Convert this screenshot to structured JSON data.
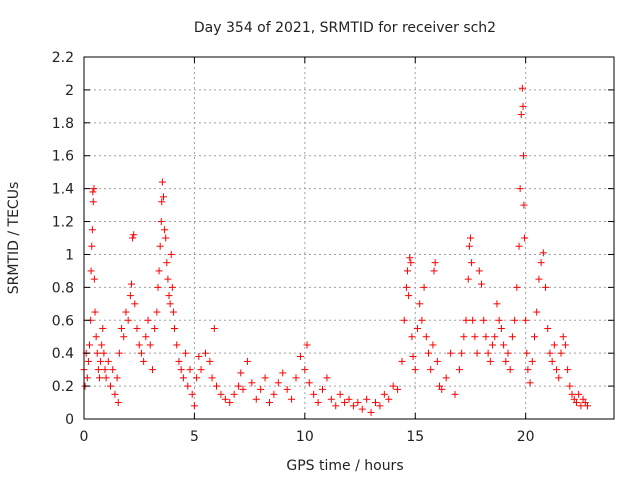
{
  "chart_data": {
    "type": "scatter",
    "title": "Day 354 of 2021, SRMTID for receiver sch2",
    "xlabel": "GPS time / hours",
    "ylabel": "SRMTID / TECUs",
    "xlim": [
      0,
      24
    ],
    "ylim": [
      0,
      2.2
    ],
    "xticks": [
      0,
      5,
      10,
      15,
      20
    ],
    "xtick_labels": [
      "0",
      "5",
      "10",
      "15",
      "20"
    ],
    "yticks": [
      0,
      0.2,
      0.4,
      0.6,
      0.8,
      1.0,
      1.2,
      1.4,
      1.6,
      1.8,
      2.0,
      2.2
    ],
    "ytick_labels": [
      "0",
      "0.2",
      "0.4",
      "0.6",
      "0.8",
      "1",
      "1.2",
      "1.4",
      "1.6",
      "1.8",
      "2",
      "2.2"
    ],
    "grid": true,
    "marker": "plus",
    "marker_color": "#ff0000",
    "series": [
      {
        "name": "SRMTID",
        "points": [
          [
            0.0,
            0.3
          ],
          [
            0.05,
            0.2
          ],
          [
            0.1,
            0.4
          ],
          [
            0.15,
            0.25
          ],
          [
            0.2,
            0.35
          ],
          [
            0.25,
            0.45
          ],
          [
            0.3,
            0.6
          ],
          [
            0.32,
            0.9
          ],
          [
            0.35,
            1.05
          ],
          [
            0.38,
            1.15
          ],
          [
            0.4,
            1.38
          ],
          [
            0.42,
            1.32
          ],
          [
            0.45,
            1.4
          ],
          [
            0.47,
            0.85
          ],
          [
            0.5,
            0.65
          ],
          [
            0.55,
            0.5
          ],
          [
            0.6,
            0.4
          ],
          [
            0.65,
            0.3
          ],
          [
            0.7,
            0.25
          ],
          [
            0.75,
            0.35
          ],
          [
            0.8,
            0.45
          ],
          [
            0.85,
            0.55
          ],
          [
            0.9,
            0.4
          ],
          [
            0.95,
            0.3
          ],
          [
            1.0,
            0.25
          ],
          [
            1.1,
            0.35
          ],
          [
            1.2,
            0.2
          ],
          [
            1.3,
            0.3
          ],
          [
            1.4,
            0.15
          ],
          [
            1.5,
            0.25
          ],
          [
            1.55,
            0.1
          ],
          [
            1.6,
            0.4
          ],
          [
            1.7,
            0.55
          ],
          [
            1.8,
            0.5
          ],
          [
            1.9,
            0.65
          ],
          [
            2.0,
            0.6
          ],
          [
            2.1,
            0.75
          ],
          [
            2.15,
            0.82
          ],
          [
            2.2,
            1.1
          ],
          [
            2.25,
            1.12
          ],
          [
            2.3,
            0.7
          ],
          [
            2.4,
            0.55
          ],
          [
            2.5,
            0.45
          ],
          [
            2.6,
            0.4
          ],
          [
            2.7,
            0.35
          ],
          [
            2.8,
            0.5
          ],
          [
            2.9,
            0.6
          ],
          [
            3.0,
            0.45
          ],
          [
            3.1,
            0.3
          ],
          [
            3.2,
            0.55
          ],
          [
            3.3,
            0.65
          ],
          [
            3.35,
            0.8
          ],
          [
            3.4,
            0.9
          ],
          [
            3.45,
            1.05
          ],
          [
            3.5,
            1.2
          ],
          [
            3.52,
            1.32
          ],
          [
            3.55,
            1.44
          ],
          [
            3.6,
            1.35
          ],
          [
            3.65,
            1.15
          ],
          [
            3.7,
            1.1
          ],
          [
            3.75,
            0.95
          ],
          [
            3.8,
            0.85
          ],
          [
            3.85,
            0.75
          ],
          [
            3.9,
            0.7
          ],
          [
            3.95,
            1.0
          ],
          [
            4.0,
            0.8
          ],
          [
            4.05,
            0.65
          ],
          [
            4.1,
            0.55
          ],
          [
            4.2,
            0.45
          ],
          [
            4.3,
            0.35
          ],
          [
            4.4,
            0.3
          ],
          [
            4.5,
            0.25
          ],
          [
            4.6,
            0.4
          ],
          [
            4.7,
            0.2
          ],
          [
            4.8,
            0.3
          ],
          [
            4.9,
            0.15
          ],
          [
            5.0,
            0.08
          ],
          [
            5.1,
            0.25
          ],
          [
            5.2,
            0.38
          ],
          [
            5.3,
            0.3
          ],
          [
            5.5,
            0.4
          ],
          [
            5.7,
            0.35
          ],
          [
            5.8,
            0.25
          ],
          [
            5.9,
            0.55
          ],
          [
            6.0,
            0.2
          ],
          [
            6.2,
            0.15
          ],
          [
            6.4,
            0.12
          ],
          [
            6.6,
            0.1
          ],
          [
            6.8,
            0.15
          ],
          [
            7.0,
            0.2
          ],
          [
            7.1,
            0.28
          ],
          [
            7.2,
            0.18
          ],
          [
            7.4,
            0.35
          ],
          [
            7.6,
            0.22
          ],
          [
            7.8,
            0.12
          ],
          [
            8.0,
            0.18
          ],
          [
            8.2,
            0.25
          ],
          [
            8.4,
            0.1
          ],
          [
            8.6,
            0.15
          ],
          [
            8.8,
            0.22
          ],
          [
            9.0,
            0.28
          ],
          [
            9.2,
            0.18
          ],
          [
            9.4,
            0.12
          ],
          [
            9.6,
            0.25
          ],
          [
            9.8,
            0.38
          ],
          [
            10.0,
            0.3
          ],
          [
            10.1,
            0.45
          ],
          [
            10.2,
            0.22
          ],
          [
            10.4,
            0.15
          ],
          [
            10.6,
            0.1
          ],
          [
            10.8,
            0.18
          ],
          [
            11.0,
            0.25
          ],
          [
            11.2,
            0.12
          ],
          [
            11.4,
            0.08
          ],
          [
            11.6,
            0.15
          ],
          [
            11.8,
            0.1
          ],
          [
            12.0,
            0.12
          ],
          [
            12.2,
            0.08
          ],
          [
            12.4,
            0.1
          ],
          [
            12.6,
            0.06
          ],
          [
            12.8,
            0.12
          ],
          [
            13.0,
            0.04
          ],
          [
            13.2,
            0.1
          ],
          [
            13.4,
            0.08
          ],
          [
            13.6,
            0.15
          ],
          [
            13.8,
            0.12
          ],
          [
            14.0,
            0.2
          ],
          [
            14.2,
            0.18
          ],
          [
            14.4,
            0.35
          ],
          [
            14.5,
            0.6
          ],
          [
            14.6,
            0.8
          ],
          [
            14.65,
            0.9
          ],
          [
            14.7,
            0.75
          ],
          [
            14.75,
            0.98
          ],
          [
            14.8,
            0.95
          ],
          [
            14.85,
            0.5
          ],
          [
            14.9,
            0.38
          ],
          [
            15.0,
            0.3
          ],
          [
            15.1,
            0.55
          ],
          [
            15.2,
            0.7
          ],
          [
            15.3,
            0.6
          ],
          [
            15.4,
            0.8
          ],
          [
            15.5,
            0.5
          ],
          [
            15.6,
            0.4
          ],
          [
            15.7,
            0.3
          ],
          [
            15.8,
            0.45
          ],
          [
            15.85,
            0.9
          ],
          [
            15.9,
            0.95
          ],
          [
            16.0,
            0.35
          ],
          [
            16.1,
            0.2
          ],
          [
            16.2,
            0.18
          ],
          [
            16.4,
            0.25
          ],
          [
            16.6,
            0.4
          ],
          [
            16.8,
            0.15
          ],
          [
            17.0,
            0.3
          ],
          [
            17.1,
            0.4
          ],
          [
            17.2,
            0.5
          ],
          [
            17.3,
            0.6
          ],
          [
            17.4,
            0.85
          ],
          [
            17.45,
            1.05
          ],
          [
            17.5,
            1.1
          ],
          [
            17.55,
            0.95
          ],
          [
            17.6,
            0.6
          ],
          [
            17.7,
            0.5
          ],
          [
            17.8,
            0.4
          ],
          [
            17.9,
            0.9
          ],
          [
            18.0,
            0.82
          ],
          [
            18.1,
            0.6
          ],
          [
            18.2,
            0.5
          ],
          [
            18.3,
            0.4
          ],
          [
            18.4,
            0.35
          ],
          [
            18.5,
            0.45
          ],
          [
            18.6,
            0.5
          ],
          [
            18.7,
            0.7
          ],
          [
            18.8,
            0.6
          ],
          [
            18.9,
            0.55
          ],
          [
            19.0,
            0.45
          ],
          [
            19.1,
            0.35
          ],
          [
            19.2,
            0.4
          ],
          [
            19.3,
            0.3
          ],
          [
            19.4,
            0.5
          ],
          [
            19.5,
            0.6
          ],
          [
            19.6,
            0.8
          ],
          [
            19.7,
            1.05
          ],
          [
            19.75,
            1.4
          ],
          [
            19.8,
            1.85
          ],
          [
            19.85,
            2.01
          ],
          [
            19.88,
            1.9
          ],
          [
            19.9,
            1.6
          ],
          [
            19.92,
            1.3
          ],
          [
            19.95,
            1.1
          ],
          [
            20.0,
            0.6
          ],
          [
            20.05,
            0.4
          ],
          [
            20.1,
            0.3
          ],
          [
            20.2,
            0.22
          ],
          [
            20.3,
            0.35
          ],
          [
            20.4,
            0.5
          ],
          [
            20.5,
            0.65
          ],
          [
            20.6,
            0.85
          ],
          [
            20.7,
            0.95
          ],
          [
            20.8,
            1.01
          ],
          [
            20.9,
            0.8
          ],
          [
            21.0,
            0.55
          ],
          [
            21.1,
            0.4
          ],
          [
            21.2,
            0.35
          ],
          [
            21.3,
            0.45
          ],
          [
            21.4,
            0.3
          ],
          [
            21.5,
            0.25
          ],
          [
            21.6,
            0.4
          ],
          [
            21.7,
            0.5
          ],
          [
            21.8,
            0.45
          ],
          [
            21.9,
            0.3
          ],
          [
            22.0,
            0.2
          ],
          [
            22.1,
            0.15
          ],
          [
            22.2,
            0.12
          ],
          [
            22.3,
            0.1
          ],
          [
            22.4,
            0.15
          ],
          [
            22.5,
            0.08
          ],
          [
            22.6,
            0.12
          ],
          [
            22.7,
            0.1
          ],
          [
            22.8,
            0.08
          ]
        ]
      }
    ]
  }
}
